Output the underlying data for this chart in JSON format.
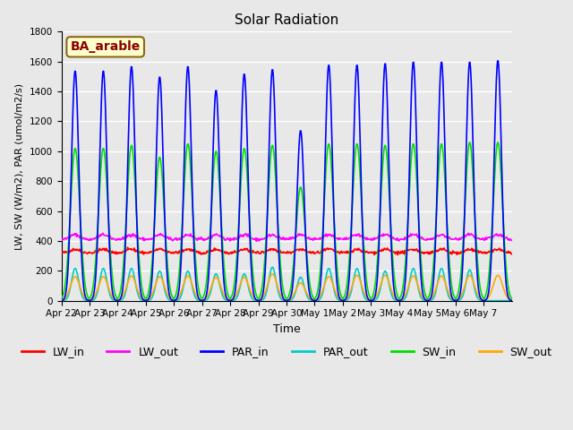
{
  "title": "Solar Radiation",
  "xlabel": "Time",
  "ylabel": "LW, SW (W/m2), PAR (umol/m2/s)",
  "ylim": [
    0,
    1800
  ],
  "annotation": "BA_arable",
  "series": {
    "LW_in": {
      "color": "#ff0000",
      "lw": 1.2
    },
    "LW_out": {
      "color": "#ff00ff",
      "lw": 1.2
    },
    "PAR_in": {
      "color": "#0000ff",
      "lw": 1.2
    },
    "PAR_out": {
      "color": "#00cccc",
      "lw": 1.2
    },
    "SW_in": {
      "color": "#00dd00",
      "lw": 1.2
    },
    "SW_out": {
      "color": "#ffaa00",
      "lw": 1.2
    }
  },
  "xtick_labels": [
    "Apr 22",
    "Apr 23",
    "Apr 24",
    "Apr 25",
    "Apr 26",
    "Apr 27",
    "Apr 28",
    "Apr 29",
    "Apr 30",
    "May 1",
    "May 2",
    "May 3",
    "May 4",
    "May 5",
    "May 6",
    "May 7"
  ],
  "num_days": 16,
  "plot_bg": "#e8e8e8",
  "grid_color": "#ffffff",
  "par_in_peaks": [
    1540,
    1540,
    1570,
    1500,
    1570,
    1410,
    1520,
    1550,
    1140,
    1580,
    1580,
    1590,
    1600,
    1600,
    1600,
    1610
  ],
  "par_out_peaks": [
    240,
    240,
    240,
    220,
    220,
    200,
    200,
    250,
    175,
    240,
    240,
    220,
    240,
    240,
    230,
    0
  ],
  "sw_in_peaks": [
    1020,
    1020,
    1040,
    960,
    1050,
    1000,
    1020,
    1040,
    760,
    1050,
    1050,
    1040,
    1050,
    1050,
    1060,
    1060
  ],
  "sw_out_peaks": [
    190,
    190,
    195,
    190,
    195,
    185,
    185,
    210,
    140,
    190,
    200,
    200,
    195,
    195,
    200,
    200
  ],
  "lw_in_base": 320,
  "lw_out_base": 390
}
